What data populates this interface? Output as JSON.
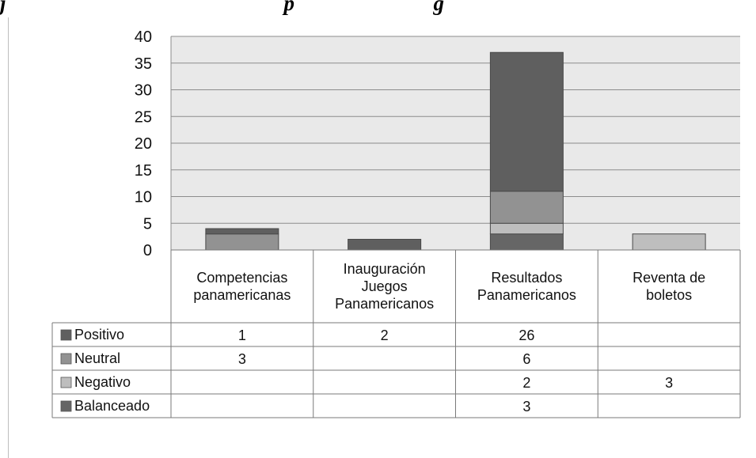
{
  "header": {
    "title_fragment": "j                                                    p                          g"
  },
  "chart_data": {
    "type": "bar",
    "stacked": true,
    "categories": [
      [
        "Competencias",
        "panamericanas"
      ],
      [
        "Inauguración",
        "Juegos",
        "Panamericanos"
      ],
      [
        "Resultados",
        "Panamericanos"
      ],
      [
        "Reventa de",
        "boletos"
      ]
    ],
    "series": [
      {
        "name": "Balanceado",
        "values": [
          null,
          null,
          3,
          null
        ],
        "color": "#666666"
      },
      {
        "name": "Negativo",
        "values": [
          null,
          null,
          2,
          3
        ],
        "color": "#bebebe"
      },
      {
        "name": "Neutral",
        "values": [
          3,
          null,
          6,
          null
        ],
        "color": "#929292"
      },
      {
        "name": "Positivo",
        "values": [
          1,
          2,
          26,
          null
        ],
        "color": "#5f5f5f"
      }
    ],
    "table_row_order": [
      "Positivo",
      "Neutral",
      "Negativo",
      "Balanceado"
    ],
    "ylim": [
      0,
      40
    ],
    "yticks": [
      "0",
      "5",
      "10",
      "15",
      "20",
      "25",
      "30",
      "35",
      "40"
    ],
    "grid": true,
    "plot_background": "#e9e9e9",
    "gridline_color": "#8c8c8c",
    "title": "",
    "xlabel": "",
    "ylabel": ""
  }
}
